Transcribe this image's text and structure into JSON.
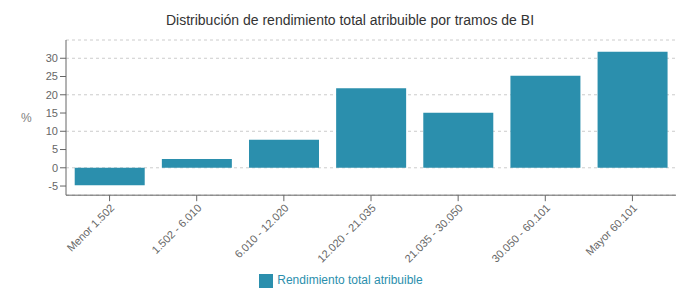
{
  "chart_data": {
    "type": "bar",
    "title": "Distribución de rendimiento total atribuible por tramos de BI",
    "categories": [
      "Menor 1.502",
      "1.502 - 6.010",
      "6.010 - 12.020",
      "12.020 - 21.035",
      "21.035 - 30.050",
      "30.050 - 60.101",
      "Mayor 60.101"
    ],
    "series": [
      {
        "name": "Rendimiento total atribuible",
        "color": "#2B8FAD",
        "values": [
          -4.8,
          2.4,
          7.7,
          21.8,
          15.1,
          25.2,
          31.8
        ]
      }
    ],
    "ylabel": "%",
    "ylim": [
      -7.5,
      35
    ],
    "yticks": [
      -5,
      0,
      5,
      10,
      15,
      20,
      25,
      30
    ],
    "grid": true,
    "legend": "bottom"
  }
}
